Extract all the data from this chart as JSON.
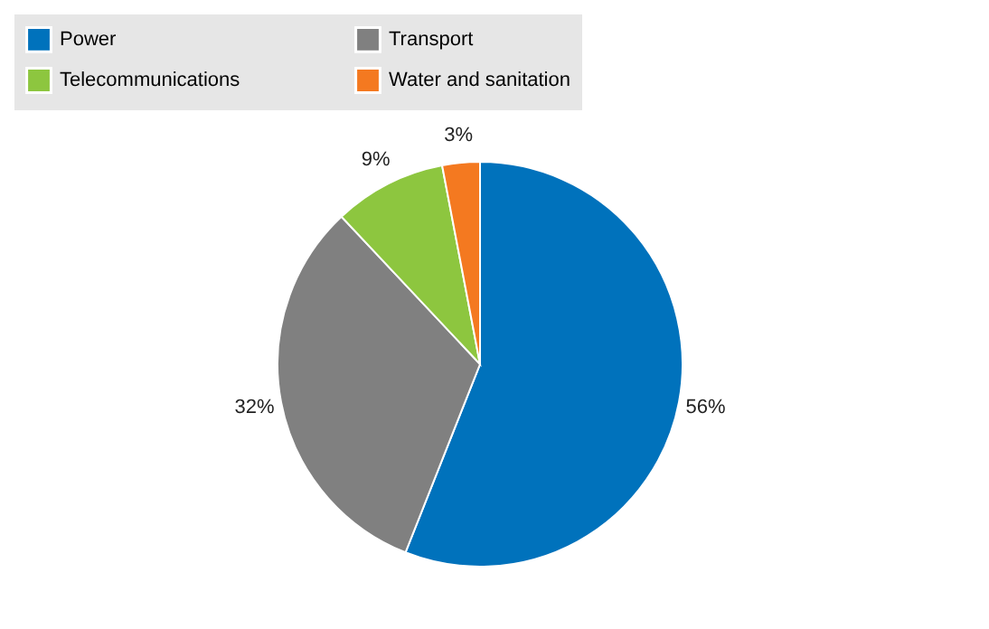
{
  "chart_data": {
    "type": "pie",
    "categories": [
      "Power",
      "Transport",
      "Telecommunications",
      "Water and sanitation"
    ],
    "values": [
      56,
      32,
      9,
      3
    ],
    "colors": [
      "#0072bc",
      "#808080",
      "#8dc63f",
      "#f47920"
    ],
    "value_labels": [
      "56%",
      "32%",
      "9%",
      "3%"
    ],
    "legend": "top"
  }
}
